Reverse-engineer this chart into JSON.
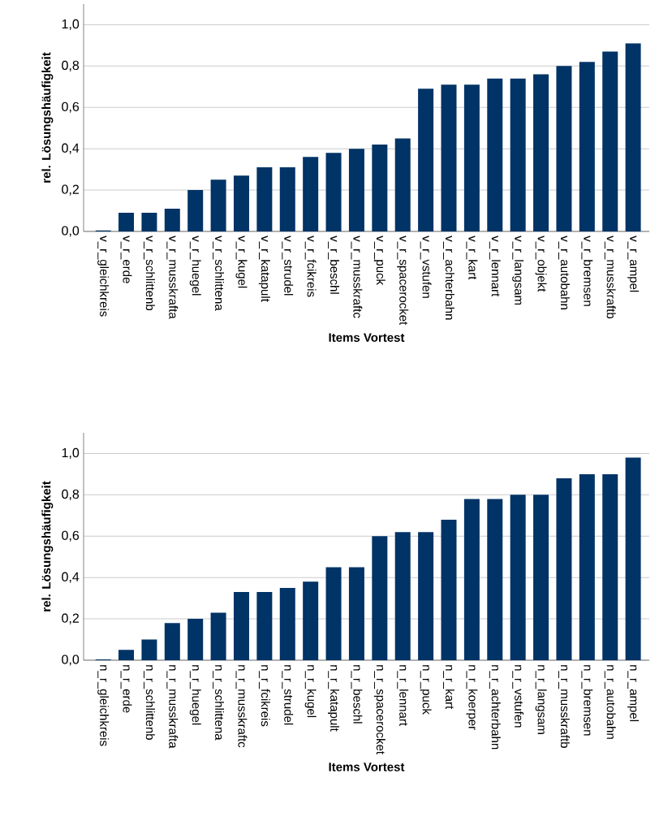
{
  "chart_data": [
    {
      "type": "bar",
      "xlabel": "Items Vortest",
      "ylabel": "rel. Lösungshäufigkeit",
      "color": "#003366",
      "grid": "y",
      "ylim": [
        0,
        1.1
      ],
      "yticks": [
        {
          "value": 0,
          "label": "0,0"
        },
        {
          "value": 0.2,
          "label": "0,2"
        },
        {
          "value": 0.4,
          "label": "0,4"
        },
        {
          "value": 0.6,
          "label": "0,6"
        },
        {
          "value": 0.8,
          "label": "0,8"
        },
        {
          "value": 1.0,
          "label": "1,0"
        }
      ],
      "categories": [
        "v_r_gleichkreis",
        "v_r_erde",
        "v_r_schlittenb",
        "v_r_musskrafta",
        "v_r_huegel",
        "v_r_schlittena",
        "v_r_kugel",
        "v_r_katapult",
        "v_r_strudel",
        "v_r_fcikreis",
        "v_r_beschl",
        "v_r_musskraftc",
        "v_r_puck",
        "v_r_spacerocket",
        "v_r_vstufen",
        "v_r_achterbahn",
        "v_r_kart",
        "v_r_lennart",
        "v_r_langsam",
        "v_r_objekt",
        "v_r_autobahn",
        "v_r_bremsen",
        "v_r_musskraftb",
        "v_r_ampel"
      ],
      "values": [
        0.005,
        0.09,
        0.09,
        0.11,
        0.2,
        0.25,
        0.27,
        0.31,
        0.31,
        0.36,
        0.38,
        0.4,
        0.42,
        0.45,
        0.69,
        0.71,
        0.71,
        0.74,
        0.74,
        0.76,
        0.8,
        0.82,
        0.87,
        0.91
      ]
    },
    {
      "type": "bar",
      "xlabel": "Items Vortest",
      "ylabel": "rel. Lösungshäufigkeit",
      "color": "#003366",
      "grid": "y",
      "ylim": [
        0,
        1.1
      ],
      "yticks": [
        {
          "value": 0,
          "label": "0,0"
        },
        {
          "value": 0.2,
          "label": "0,2"
        },
        {
          "value": 0.4,
          "label": "0,4"
        },
        {
          "value": 0.6,
          "label": "0,6"
        },
        {
          "value": 0.8,
          "label": "0,8"
        },
        {
          "value": 1.0,
          "label": "1,0"
        }
      ],
      "categories": [
        "n_r_gleichkreis",
        "n_r_erde",
        "n_r_schlittenb",
        "n_r_musskrafta",
        "n_r_huegel",
        "n_r_schlittena",
        "n_r_musskraftc",
        "n_r_fcikreis",
        "n_r_strudel",
        "n_r_kugel",
        "n_r_katapult",
        "n_r_beschl",
        "n_r_spacerocket",
        "n_r_lennart",
        "n_r_puck",
        "n_r_kart",
        "n_r_koerper",
        "n_r_achterbahn",
        "n_r_vstufen",
        "n_r_langsam",
        "n_r_musskraftb",
        "n_r_bremsen",
        "n_r_autobahn",
        "n_r_ampel"
      ],
      "values": [
        0.004,
        0.05,
        0.1,
        0.18,
        0.2,
        0.23,
        0.33,
        0.33,
        0.35,
        0.38,
        0.45,
        0.45,
        0.6,
        0.62,
        0.62,
        0.68,
        0.78,
        0.78,
        0.8,
        0.8,
        0.88,
        0.9,
        0.9,
        0.98
      ]
    }
  ]
}
